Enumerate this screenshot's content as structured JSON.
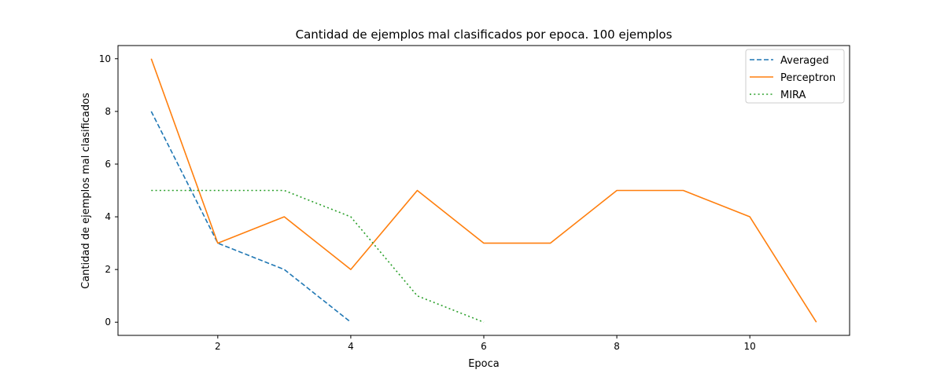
{
  "chart_data": {
    "type": "line",
    "title": "Cantidad de ejemplos mal clasificados por epoca. 100 ejemplos",
    "xlabel": "Epoca",
    "ylabel": "Cantidad de ejemplos mal clasificados",
    "xlim": [
      0.5,
      11.5
    ],
    "ylim": [
      -0.5,
      10.5
    ],
    "xticks": [
      "2",
      "4",
      "6",
      "8",
      "10"
    ],
    "yticks": [
      "0",
      "2",
      "4",
      "6",
      "8",
      "10"
    ],
    "grid": false,
    "legend_position": "top-right",
    "series": [
      {
        "name": "Averaged",
        "x": [
          1,
          2,
          3,
          4
        ],
        "y": [
          8,
          3,
          2,
          0
        ],
        "color": "#1f77b4",
        "style": "dashed"
      },
      {
        "name": "Perceptron",
        "x": [
          1,
          2,
          3,
          4,
          5,
          6,
          7,
          8,
          9,
          10,
          11
        ],
        "y": [
          10,
          3,
          4,
          2,
          5,
          3,
          3,
          5,
          5,
          4,
          0
        ],
        "color": "#ff7f0e",
        "style": "solid"
      },
      {
        "name": "MIRA",
        "x": [
          1,
          2,
          3,
          4,
          5,
          6
        ],
        "y": [
          5,
          5,
          5,
          4,
          1,
          0
        ],
        "color": "#2ca02c",
        "style": "dotted"
      }
    ]
  }
}
